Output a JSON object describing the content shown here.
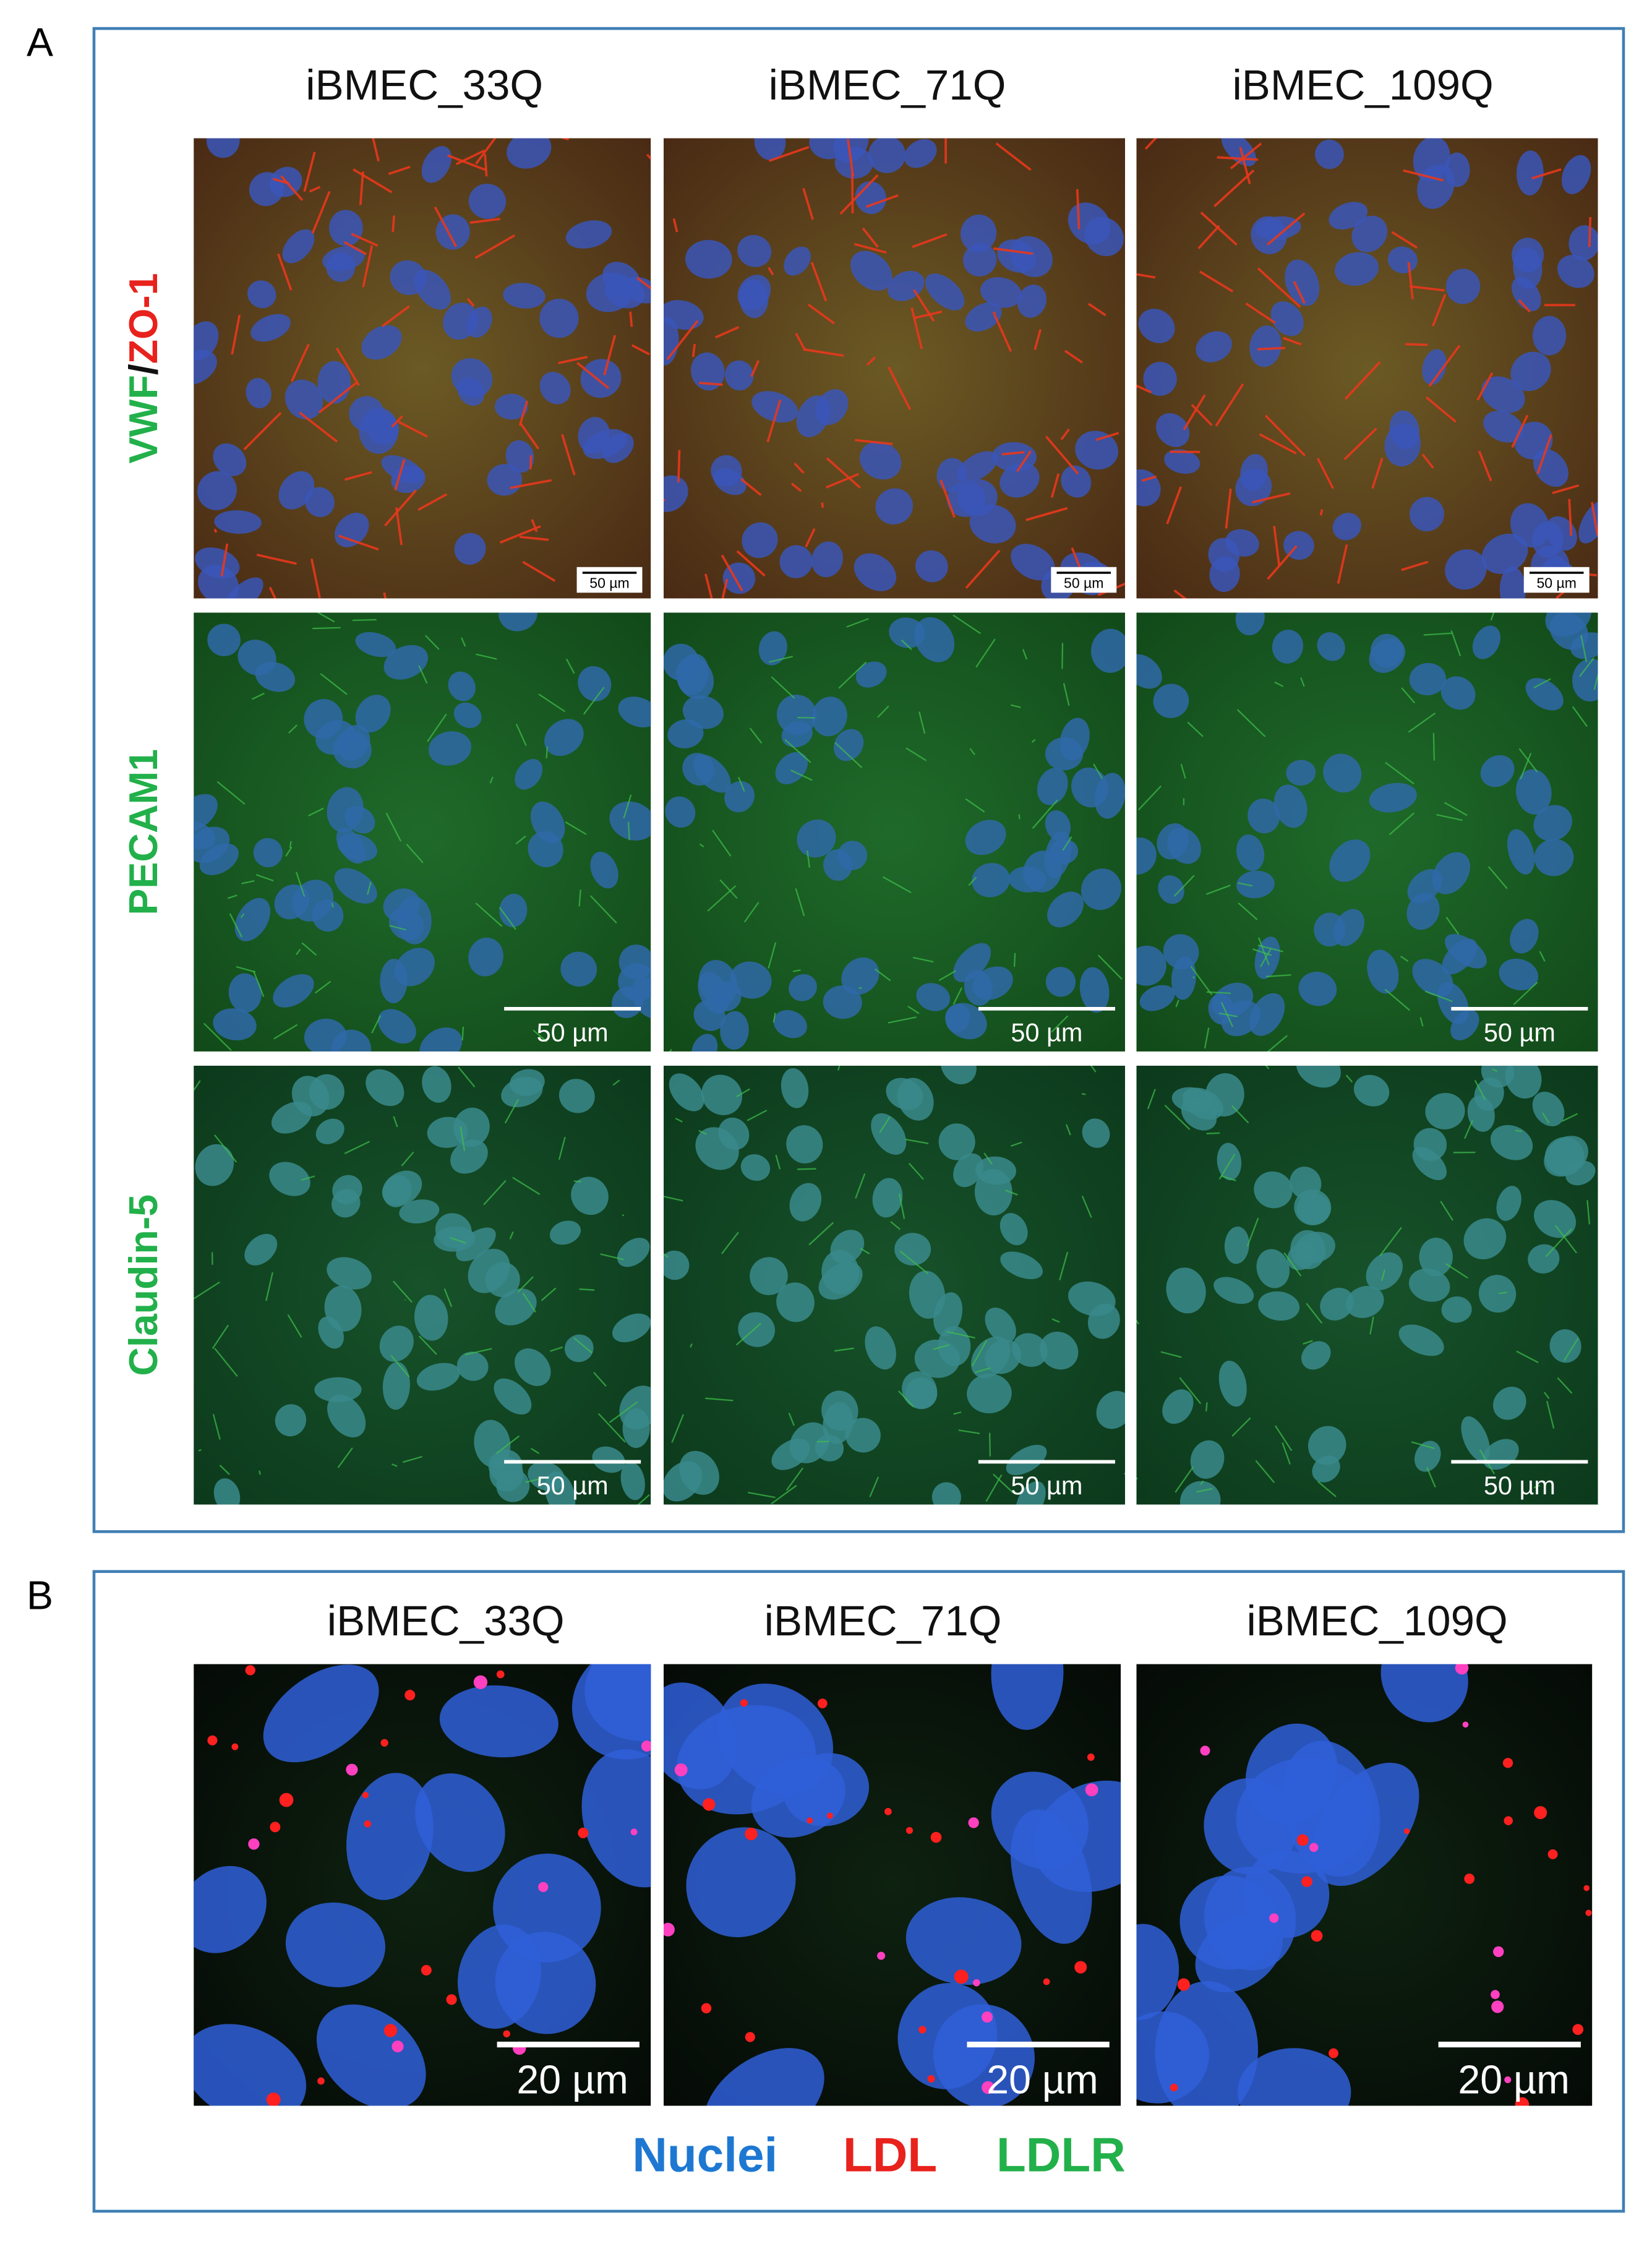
{
  "panel_a": {
    "label": "A",
    "columns": [
      "iBMEC_33Q",
      "iBMEC_71Q",
      "iBMEC_109Q"
    ],
    "rows": [
      {
        "label_parts": [
          "VWF",
          "/",
          "ZO-1"
        ],
        "scale_bars": [
          "50 µm",
          "50 µm",
          "50 µm"
        ]
      },
      {
        "label": "PECAM1",
        "scale_bars": [
          "50 µm",
          "50 µm",
          "50 µm"
        ]
      },
      {
        "label": "Claudin-5",
        "scale_bars": [
          "50 µm",
          "50 µm",
          "50 µm"
        ]
      }
    ]
  },
  "panel_b": {
    "label": "B",
    "columns": [
      "iBMEC_33Q",
      "iBMEC_71Q",
      "iBMEC_109Q"
    ],
    "scale_bars": [
      "20 µm",
      "20 µm",
      "20 µm"
    ],
    "legend": [
      "Nuclei",
      "LDL",
      "LDLR"
    ]
  }
}
